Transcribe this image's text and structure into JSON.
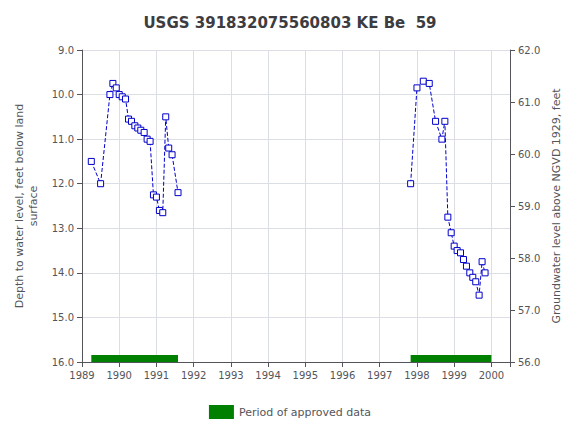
{
  "chart_data": {
    "type": "line",
    "title": "USGS 391832075560803 KE Be  59",
    "ylabel": "Depth to water level, feet below land\nsurface",
    "y2label": "Groundwater level above NGVD 1929, feet",
    "xlim": [
      1989.0,
      2000.5
    ],
    "xticks": [
      1989,
      1990,
      1991,
      1992,
      1993,
      1994,
      1995,
      1996,
      1997,
      1998,
      1999,
      2000
    ],
    "ylim": [
      16.0,
      9.0
    ],
    "yticks": [
      {
        "value": 9.0,
        "label": "9.0"
      },
      {
        "value": 10.0,
        "label": "10.0"
      },
      {
        "value": 11.0,
        "label": "11.0"
      },
      {
        "value": 12.0,
        "label": "12.0"
      },
      {
        "value": 13.0,
        "label": "13.0"
      },
      {
        "value": 14.0,
        "label": "14.0"
      },
      {
        "value": 15.0,
        "label": "15.0"
      },
      {
        "value": 16.0,
        "label": "16.0"
      }
    ],
    "y2lim": [
      56.0,
      62.0
    ],
    "y2ticks": [
      {
        "value": 56.0,
        "label": "56.0"
      },
      {
        "value": 57.0,
        "label": "57.0"
      },
      {
        "value": 58.0,
        "label": "58.0"
      },
      {
        "value": 59.0,
        "label": "59.0"
      },
      {
        "value": 60.0,
        "label": "60.0"
      },
      {
        "value": 61.0,
        "label": "61.0"
      },
      {
        "value": 62.0,
        "label": "62.0"
      }
    ],
    "grid": true,
    "legend": "bottom",
    "series": [
      {
        "type": "line",
        "color": "#0000cc",
        "line_style": "dashed",
        "marker": "square",
        "x": [
          1989.25,
          1989.5,
          1989.75,
          1989.83,
          1989.92,
          1990.0,
          1990.08,
          1990.17,
          1990.25,
          1990.33,
          1990.42,
          1990.5,
          1990.58,
          1990.67,
          1990.75,
          1990.83,
          1990.92,
          1991.0,
          1991.08,
          1991.17,
          1991.25,
          1991.33,
          1991.42,
          1991.58
        ],
        "values": [
          11.5,
          12.0,
          10.0,
          9.75,
          9.85,
          10.0,
          10.05,
          10.1,
          10.55,
          10.6,
          10.7,
          10.75,
          10.8,
          10.85,
          11.0,
          11.05,
          12.25,
          12.3,
          12.6,
          12.65,
          10.5,
          11.2,
          11.35,
          12.2
        ]
      },
      {
        "type": "line",
        "color": "#0000cc",
        "line_style": "dashed",
        "marker": "square",
        "x": [
          1997.83,
          1998.0,
          1998.17,
          1998.33,
          1998.5,
          1998.67,
          1998.75,
          1998.83,
          1998.92,
          1999.0,
          1999.08,
          1999.17,
          1999.25,
          1999.33,
          1999.42,
          1999.5,
          1999.58,
          1999.67,
          1999.75,
          1999.83
        ],
        "values": [
          12.0,
          9.85,
          9.7,
          9.75,
          10.6,
          11.0,
          10.6,
          12.75,
          13.1,
          13.4,
          13.5,
          13.55,
          13.7,
          13.85,
          14.0,
          14.1,
          14.2,
          14.5,
          13.75,
          14.0
        ]
      },
      {
        "name": "Period of approved data",
        "type": "bar",
        "orientation": "horizontal",
        "color": "#008000",
        "periods": [
          [
            1989.25,
            1991.58
          ],
          [
            1997.83,
            2000.0
          ]
        ]
      }
    ]
  }
}
